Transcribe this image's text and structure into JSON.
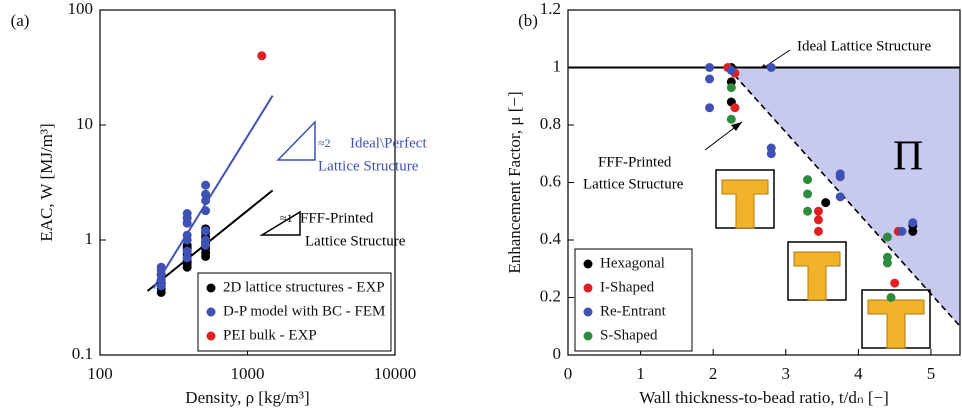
{
  "chart_data": [
    {
      "type": "scatter",
      "panel_label": "(a)",
      "x_label": "Density, ρ [kg/m³]",
      "y_label": "EAC, W [MJ/m³]",
      "xscale": "log",
      "yscale": "log",
      "xlim": [
        100,
        10000
      ],
      "ylim": [
        0.1,
        100
      ],
      "xticks": [
        100,
        1000,
        10000
      ],
      "yticks": [
        0.1,
        1,
        10,
        100
      ],
      "legend": "lower right",
      "series": [
        {
          "name": "2D lattice structures - EXP",
          "color": "#000000",
          "x": [
            260,
            260,
            260,
            260,
            260,
            260,
            390,
            390,
            390,
            390,
            390,
            390,
            390,
            390,
            520,
            520,
            520,
            520,
            520,
            520,
            520,
            520
          ],
          "values": [
            0.35,
            0.38,
            0.4,
            0.42,
            0.45,
            0.5,
            0.58,
            0.62,
            0.65,
            0.7,
            0.75,
            0.8,
            0.85,
            0.9,
            0.72,
            0.78,
            0.85,
            0.9,
            0.95,
            1.05,
            1.15,
            1.25
          ]
        },
        {
          "name": "D-P model with BC - FEM",
          "color": "#3f51b5",
          "x": [
            260,
            260,
            260,
            260,
            260,
            390,
            390,
            390,
            390,
            390,
            390,
            390,
            520,
            520,
            520,
            520,
            520,
            520,
            520
          ],
          "values": [
            0.4,
            0.45,
            0.5,
            0.55,
            0.58,
            0.7,
            0.8,
            1.0,
            1.1,
            1.4,
            1.55,
            1.7,
            0.9,
            1.0,
            1.2,
            1.8,
            2.2,
            2.5,
            3.0
          ]
        },
        {
          "name": "PEI bulk - EXP",
          "color": "#e02020",
          "x": [
            1250
          ],
          "values": [
            40
          ]
        }
      ],
      "lines": [
        {
          "color": "#000000",
          "x": [
            210,
            1480
          ],
          "values": [
            0.36,
            2.7
          ],
          "dash": false
        },
        {
          "color": "#3f51b5",
          "x": [
            230,
            1480
          ],
          "values": [
            0.38,
            18
          ],
          "dash": false
        }
      ],
      "annotations": [
        {
          "text": "≈2",
          "color": "#3f51b5"
        },
        {
          "text": "Ideal\\Perfect",
          "color": "#3f51b5"
        },
        {
          "text": "Lattice Structure",
          "color": "#3f51b5"
        },
        {
          "text": "≈1",
          "color": "#000000"
        },
        {
          "text": "FFF-Printed",
          "color": "#000000"
        },
        {
          "text": "Lattice Structure",
          "color": "#000000"
        }
      ]
    },
    {
      "type": "scatter",
      "panel_label": "(b)",
      "x_label": "Wall thickness-to-bead ratio, t/dₙ [−]",
      "y_label": "Enhancement Factor, μ [−]",
      "xscale": "linear",
      "yscale": "linear",
      "xlim": [
        0,
        5.4
      ],
      "ylim": [
        0,
        1.2
      ],
      "xticks": [
        0,
        1,
        2,
        3,
        4,
        5
      ],
      "yticks": [
        0,
        0.2,
        0.4,
        0.6,
        0.8,
        1,
        1.2
      ],
      "legend": "lower left",
      "shade": {
        "color": "#c7c9ee",
        "x": [
          2.2,
          5.4,
          5.4
        ],
        "values": [
          1,
          1,
          0.1
        ]
      },
      "series": [
        {
          "name": "Hexagonal",
          "color": "#000000",
          "x": [
            2.25,
            2.25,
            2.25,
            3.55,
            4.75,
            4.75
          ],
          "values": [
            1.0,
            0.95,
            0.88,
            0.53,
            0.45,
            0.43
          ]
        },
        {
          "name": "I-Shaped",
          "color": "#e02020",
          "x": [
            2.2,
            2.3,
            2.3,
            3.45,
            3.45,
            3.45,
            4.55,
            4.5
          ],
          "values": [
            1.0,
            0.98,
            0.86,
            0.5,
            0.47,
            0.43,
            0.43,
            0.25
          ]
        },
        {
          "name": "Re-Entrant",
          "color": "#3f51b5",
          "x": [
            1.95,
            1.95,
            1.95,
            2.25,
            2.8,
            2.8,
            2.8,
            3.75,
            3.75,
            3.75,
            4.75,
            4.6
          ],
          "values": [
            1.0,
            0.96,
            0.86,
            0.99,
            1.0,
            0.72,
            0.7,
            0.63,
            0.62,
            0.55,
            0.46,
            0.43
          ]
        },
        {
          "name": "S-Shaped",
          "color": "#2e8b3e",
          "x": [
            2.25,
            2.25,
            3.3,
            3.3,
            3.3,
            4.4,
            4.4,
            4.4,
            4.45
          ],
          "values": [
            0.93,
            0.82,
            0.61,
            0.56,
            0.5,
            0.41,
            0.34,
            0.32,
            0.2
          ]
        }
      ],
      "lines": [
        {
          "color": "#000000",
          "x": [
            0,
            5.4
          ],
          "values": [
            1,
            1
          ],
          "dash": false
        },
        {
          "color": "#000000",
          "x": [
            2.2,
            5.4
          ],
          "values": [
            1,
            0.1
          ],
          "dash": true
        }
      ],
      "annotations": [
        {
          "text": "Ideal Lattice Structure",
          "color": "#000000"
        },
        {
          "text": "FFF-Printed",
          "color": "#000000"
        },
        {
          "text": "Lattice Structure",
          "color": "#000000"
        },
        {
          "text": "Π",
          "color": "#000000"
        }
      ]
    }
  ]
}
